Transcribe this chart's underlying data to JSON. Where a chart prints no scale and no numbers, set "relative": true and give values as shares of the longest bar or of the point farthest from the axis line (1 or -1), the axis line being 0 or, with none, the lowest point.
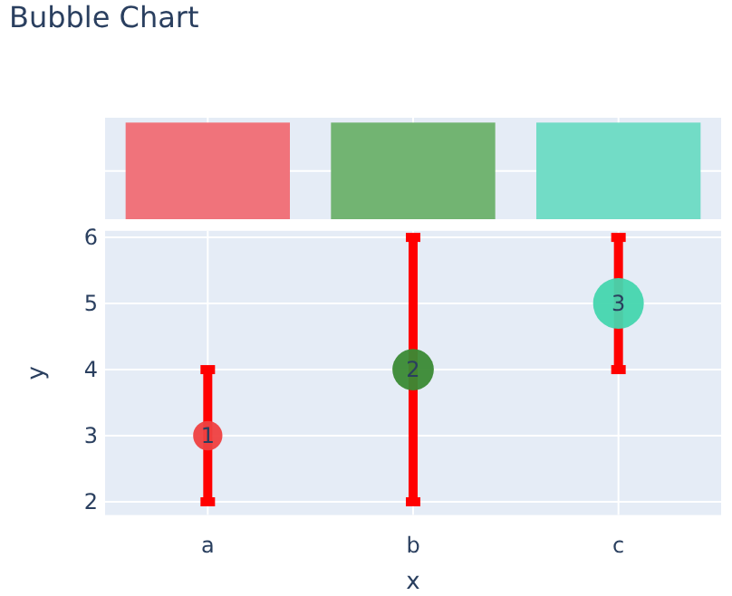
{
  "chart_data": [
    {
      "type": "bar",
      "title": "Bubble Chart",
      "categories": [
        null,
        null,
        null
      ],
      "relative": true,
      "grid": true,
      "series": [
        {
          "values": [
            1,
            1,
            1
          ],
          "colors": [
            "#f0737b",
            "#72b472",
            "#72dcc6"
          ]
        }
      ]
    },
    {
      "type": "bubble",
      "categories": [
        "a",
        "b",
        "c"
      ],
      "xlabel": "x",
      "ylabel": "y",
      "ylim": [
        1.8,
        6.1
      ],
      "yticks": [
        2,
        3,
        4,
        5,
        6
      ],
      "grid": true,
      "annotations": [
        {
          "text": "1",
          "x": "a",
          "y": 3
        },
        {
          "text": "2",
          "x": "b",
          "y": 4
        },
        {
          "text": "3",
          "x": "c",
          "y": 5
        }
      ],
      "series": [
        {
          "values": [
            3,
            4,
            5
          ],
          "sizes": [
            0.333,
            0.667,
            1
          ],
          "colors": [
            "#ef4040",
            "#3a8a34",
            "#44d6ae"
          ],
          "errors": [
            1,
            2,
            1
          ]
        }
      ]
    }
  ]
}
